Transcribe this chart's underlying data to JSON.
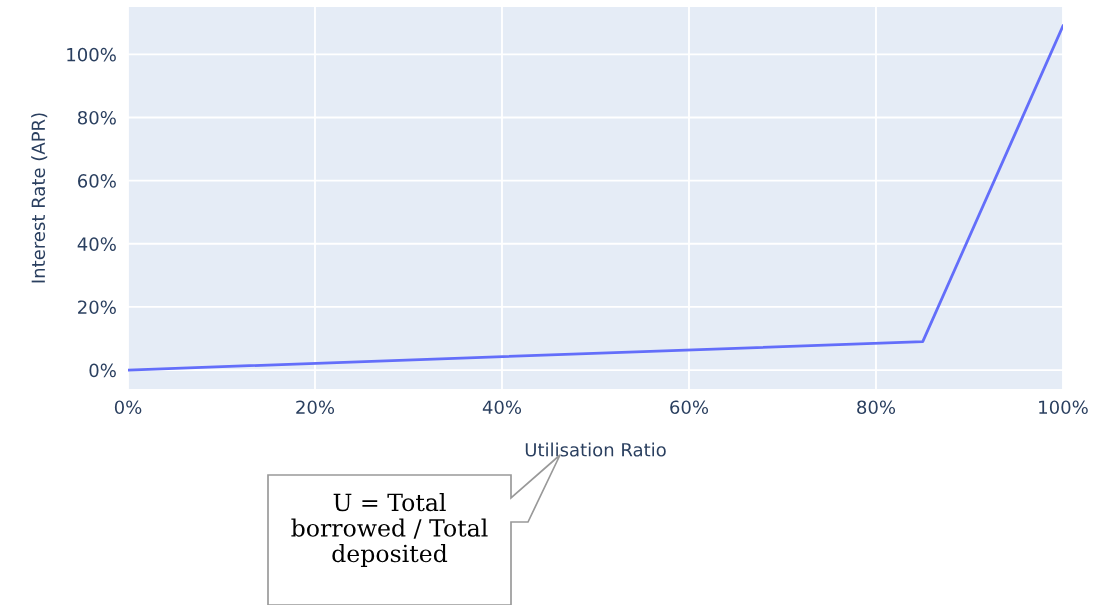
{
  "chart_data": {
    "type": "line",
    "xlabel": "Utilisation Ratio",
    "ylabel": "Interest Rate (APR)",
    "x": [
      0,
      85,
      100
    ],
    "series": [
      {
        "color": "#636efa",
        "values": [
          0,
          9,
          109
        ]
      }
    ],
    "xlim": [
      0,
      100
    ],
    "ylim": [
      -6,
      115
    ],
    "xticks": [
      {
        "value": 0,
        "label": "0%"
      },
      {
        "value": 20,
        "label": "20%"
      },
      {
        "value": 40,
        "label": "40%"
      },
      {
        "value": 60,
        "label": "60%"
      },
      {
        "value": 80,
        "label": "80%"
      },
      {
        "value": 100,
        "label": "100%"
      }
    ],
    "yticks": [
      {
        "value": 0,
        "label": "0%"
      },
      {
        "value": 20,
        "label": "20%"
      },
      {
        "value": 40,
        "label": "40%"
      },
      {
        "value": 60,
        "label": "60%"
      },
      {
        "value": 80,
        "label": "80%"
      },
      {
        "value": 100,
        "label": "100%"
      }
    ],
    "grid": true,
    "marker": "none",
    "line_style": "solid",
    "annotations": [
      "U = Total\nborrowed / Total\ndeposited"
    ]
  }
}
